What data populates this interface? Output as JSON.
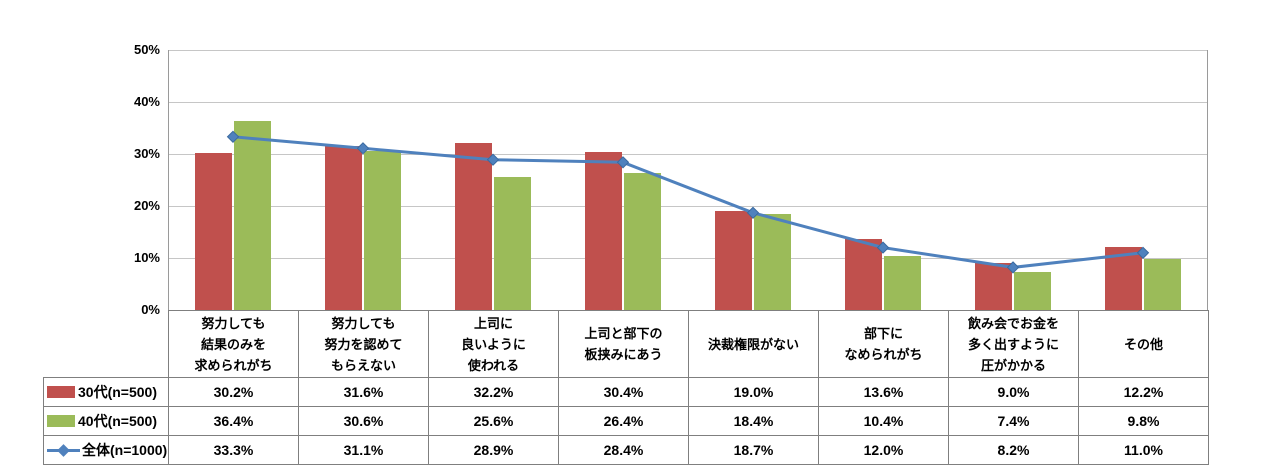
{
  "chart_data": {
    "type": "bar",
    "title": "",
    "xlabel": "",
    "ylabel": "",
    "categories": [
      "努力しても\n結果のみを\n求められがち",
      "努力しても\n努力を認めて\nもらえない",
      "上司に\n良いように\n使われる",
      "上司と部下の\n板挟みにあう",
      "決裁権限がない",
      "部下に\nなめられがち",
      "飲み会でお金を\n多く出すように\n圧がかかる",
      "その他"
    ],
    "series": [
      {
        "name": "30代(n=500)",
        "type": "bar",
        "color": "#c0504d",
        "values": [
          30.2,
          31.6,
          32.2,
          30.4,
          19.0,
          13.6,
          9.0,
          12.2
        ],
        "display_values": [
          "30.2%",
          "31.6%",
          "32.2%",
          "30.4%",
          "19.0%",
          "13.6%",
          "9.0%",
          "12.2%"
        ]
      },
      {
        "name": "40代(n=500)",
        "type": "bar",
        "color": "#9bbb59",
        "values": [
          36.4,
          30.6,
          25.6,
          26.4,
          18.4,
          10.4,
          7.4,
          9.8
        ],
        "display_values": [
          "36.4%",
          "30.6%",
          "25.6%",
          "26.4%",
          "18.4%",
          "10.4%",
          "7.4%",
          "9.8%"
        ]
      },
      {
        "name": "全体(n=1000)",
        "type": "line",
        "color": "#4f81bd",
        "values": [
          33.3,
          31.1,
          28.9,
          28.4,
          18.7,
          12.0,
          8.2,
          11.0
        ],
        "display_values": [
          "33.3%",
          "31.1%",
          "28.9%",
          "28.4%",
          "18.7%",
          "12.0%",
          "8.2%",
          "11.0%"
        ]
      }
    ],
    "ylim": [
      0,
      50
    ],
    "yticks": [
      "0%",
      "10%",
      "20%",
      "30%",
      "40%",
      "50%"
    ],
    "grid": true,
    "legend_position": "table-left"
  },
  "colors": {
    "background": "#ffffff",
    "gridline": "#c6c6c6",
    "axis": "#9a9a9a",
    "table_border": "#7f7f7f",
    "bar_30s": "#c0504d",
    "bar_40s": "#9bbb59",
    "line_total": "#4f81bd"
  }
}
